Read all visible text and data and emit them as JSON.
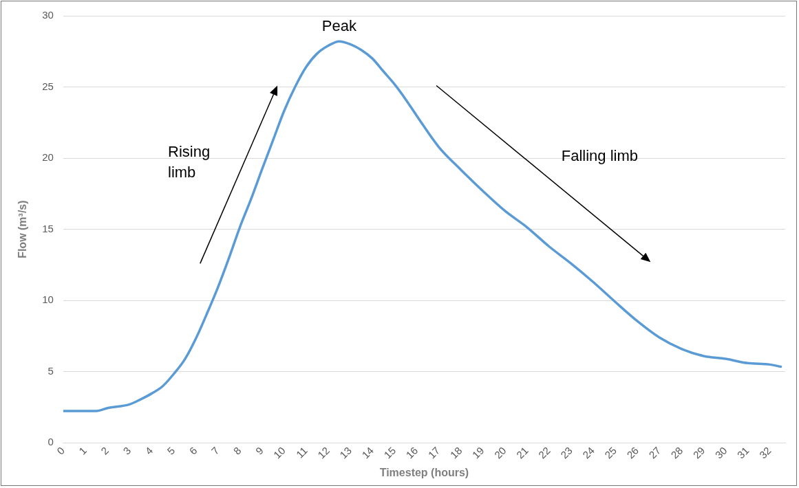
{
  "chart_data": {
    "type": "line",
    "xlabel": "Timestep (hours)",
    "ylabel": "Flow (m³/s)",
    "x": [
      0,
      1,
      1.5,
      2,
      3,
      3.5,
      4,
      4.5,
      5,
      5.5,
      6,
      6.5,
      7,
      7.5,
      8,
      8.5,
      9,
      9.5,
      10,
      10.5,
      11,
      11.5,
      12,
      12.5,
      13,
      13.5,
      14,
      14.5,
      15,
      15.5,
      16,
      17,
      18,
      19,
      20,
      21,
      22,
      23,
      24,
      25,
      26,
      27,
      28,
      29,
      30,
      31,
      32,
      32.5
    ],
    "series": [
      {
        "color": "#5b9bd5",
        "values": [
          2.24,
          2.24,
          2.24,
          2.44,
          2.7,
          3.05,
          3.46,
          3.97,
          4.83,
          5.85,
          7.3,
          9.05,
          10.9,
          12.96,
          15.15,
          17.1,
          19.2,
          21.25,
          23.3,
          25,
          26.4,
          27.35,
          27.9,
          28.2,
          28,
          27.6,
          27,
          26.1,
          25.2,
          24.15,
          23,
          20.8,
          19.2,
          17.7,
          16.3,
          15.15,
          13.8,
          12.6,
          11.3,
          9.9,
          8.55,
          7.4,
          6.6,
          6.1,
          5.9,
          5.6,
          5.5,
          5.35
        ]
      }
    ],
    "xlim": [
      0,
      32.7
    ],
    "xticks": [
      0,
      1,
      2,
      3,
      4,
      5,
      6,
      7,
      8,
      9,
      10,
      11,
      12,
      13,
      14,
      15,
      16,
      17,
      18,
      19,
      20,
      21,
      22,
      23,
      24,
      25,
      26,
      27,
      28,
      29,
      30,
      31,
      32
    ],
    "ylim": [
      0,
      30
    ],
    "yticks": [
      0,
      5,
      10,
      15,
      20,
      25,
      30
    ],
    "grid": "y",
    "legend": false,
    "marker": "none",
    "line_style": "solid",
    "annotations": [
      {
        "text": "Peak",
        "x": 12.5,
        "y": 28.2
      },
      "Rising limb",
      "Falling limb"
    ]
  }
}
